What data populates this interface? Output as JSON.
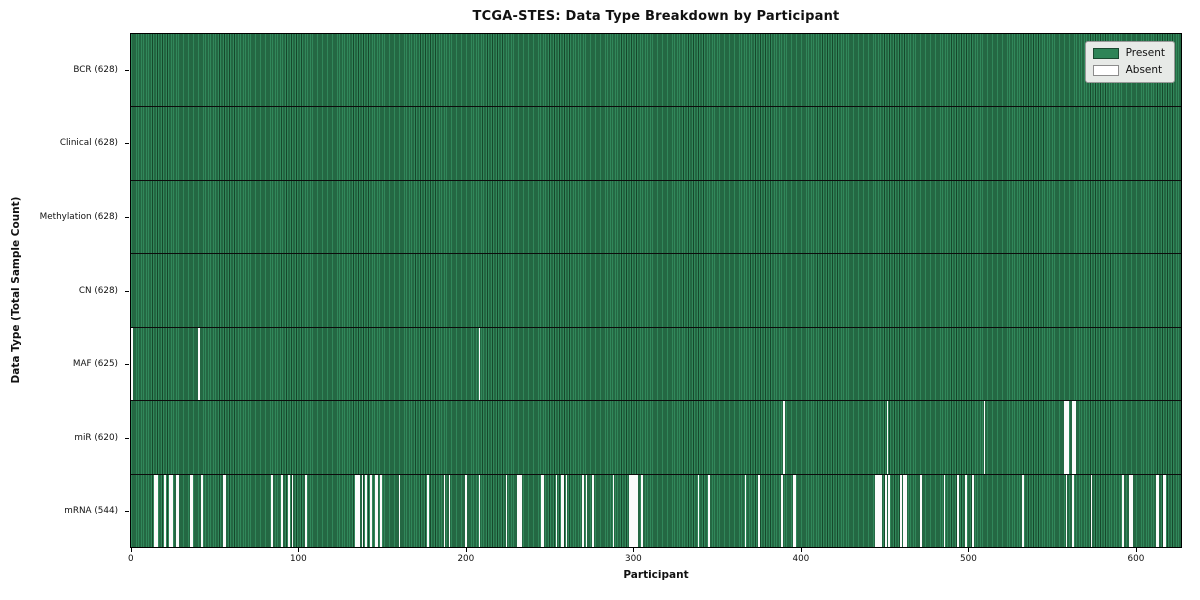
{
  "chart_data": {
    "type": "heatmap",
    "title": "TCGA-STES: Data Type Breakdown by Participant",
    "xlabel": "Participant",
    "ylabel": "Data Type (Total Sample Count)",
    "n_participants": 628,
    "x_range": [
      0,
      628
    ],
    "x_ticks": [
      0,
      100,
      200,
      300,
      400,
      500,
      600
    ],
    "legend_position": "upper right",
    "grid": false,
    "colors": {
      "present": "#2E8457",
      "present_edge": "#16492C",
      "absent": "#FBFBFB"
    },
    "legend": [
      {
        "label": "Present",
        "color": "#2E8457"
      },
      {
        "label": "Absent",
        "color": "#FFFFFF"
      }
    ],
    "rows": [
      {
        "id": "bcr",
        "label": "BCR (628)",
        "count": 628,
        "absent": []
      },
      {
        "id": "clinical",
        "label": "Clinical (628)",
        "count": 628,
        "absent": []
      },
      {
        "id": "methylation",
        "label": "Methylation (628)",
        "count": 628,
        "absent": []
      },
      {
        "id": "cn",
        "label": "CN (628)",
        "count": 628,
        "absent": []
      },
      {
        "id": "maf",
        "label": "MAF (625)",
        "count": 625,
        "absent": [
          0,
          40,
          208
        ]
      },
      {
        "id": "mir",
        "label": "miR (620)",
        "count": 620,
        "absent": [
          390,
          452,
          510,
          558,
          559,
          560,
          563,
          564
        ]
      },
      {
        "id": "mrna",
        "label": "mRNA (544)",
        "count": 544,
        "absent": [
          14,
          15,
          20,
          23,
          24,
          27,
          28,
          35,
          36,
          42,
          55,
          56,
          84,
          90,
          94,
          96,
          104,
          134,
          135,
          136,
          138,
          140,
          143,
          146,
          147,
          149,
          160,
          177,
          187,
          190,
          200,
          208,
          224,
          231,
          232,
          233,
          245,
          246,
          254,
          257,
          258,
          260,
          270,
          272,
          276,
          288,
          298,
          299,
          300,
          301,
          302,
          305,
          339,
          345,
          367,
          375,
          389,
          396,
          397,
          445,
          446,
          447,
          448,
          451,
          453,
          460,
          462,
          463,
          472,
          486,
          494,
          499,
          503,
          533,
          559,
          563,
          574,
          593,
          597,
          598,
          613,
          614,
          617,
          618
        ]
      }
    ]
  }
}
